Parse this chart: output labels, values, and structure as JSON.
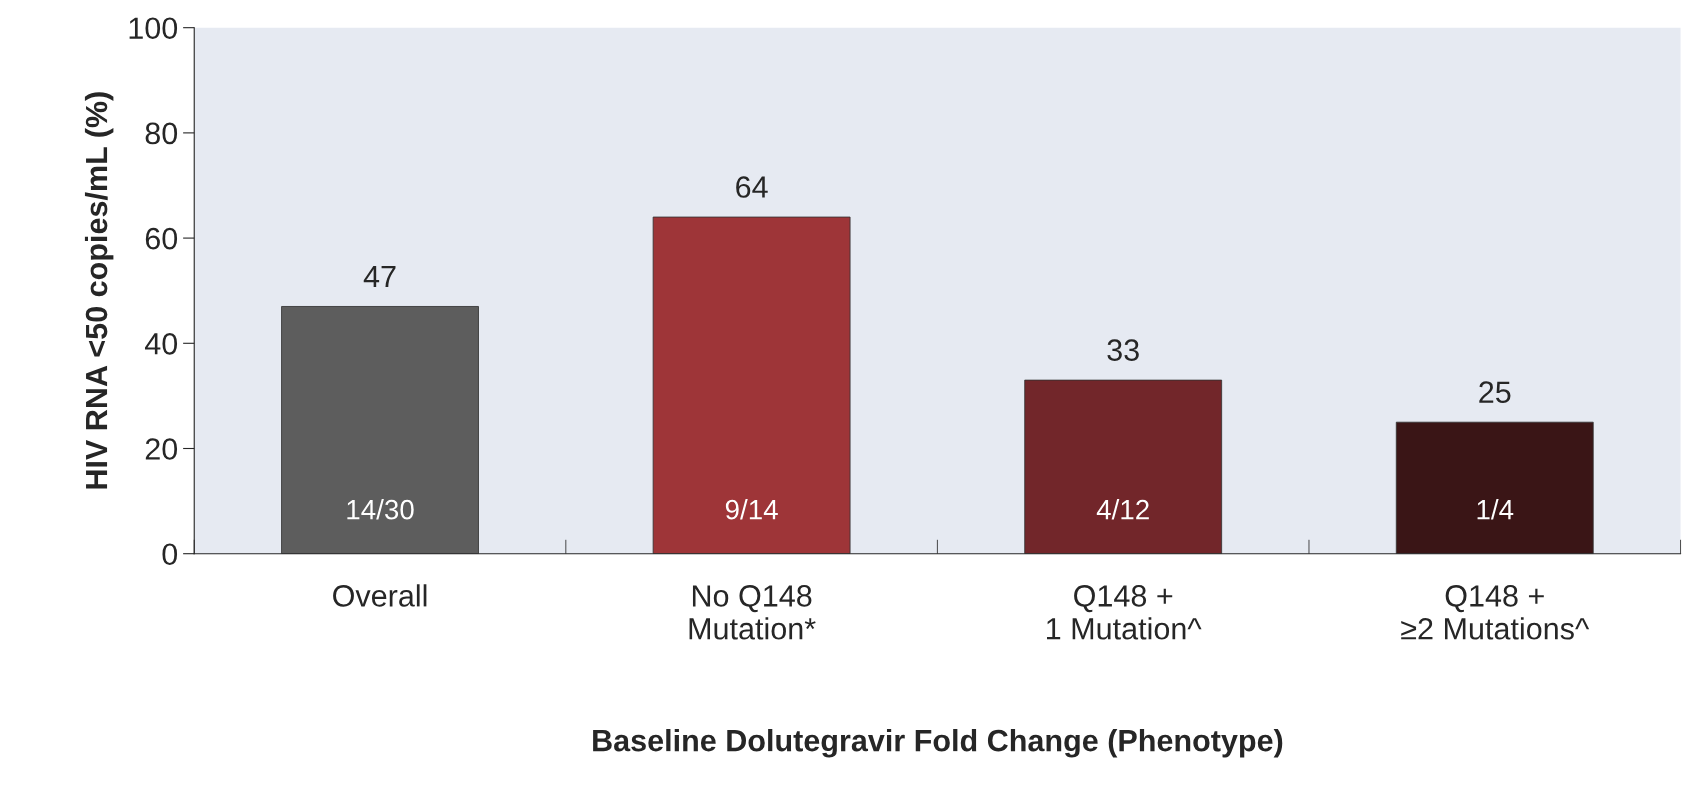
{
  "chart_data": {
    "type": "bar",
    "xlabel": "Baseline Dolutegravir Fold Change (Phenotype)",
    "ylabel": "HIV RNA <50 copies/mL (%)",
    "categories": [
      "Overall",
      "No Q148\nMutation*",
      "Q148 +\n1 Mutation^",
      "Q148 +\n≥2 Mutations^"
    ],
    "values": [
      47,
      64,
      33,
      25
    ],
    "colors": [
      "#5d5d5d",
      "#9e3538",
      "#72262a",
      "#3a1516"
    ],
    "data_labels": true,
    "annotations": [
      "14/30",
      "9/14",
      "4/12",
      "1/4"
    ],
    "ylim": [
      0,
      100
    ],
    "yticks": [
      0,
      20,
      40,
      60,
      80,
      100
    ],
    "grid": false,
    "legend": false
  }
}
